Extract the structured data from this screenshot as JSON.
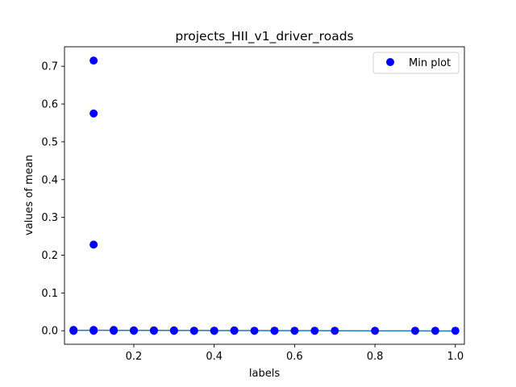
{
  "chart_data": {
    "type": "scatter",
    "title": "projects_HII_v1_driver_roads",
    "xlabel": "labels",
    "ylabel": "values of mean",
    "xlim": [
      0.0275,
      1.0225
    ],
    "ylim": [
      -0.0358,
      0.7516
    ],
    "xticks": [
      0.2,
      0.4,
      0.6,
      0.8,
      1.0
    ],
    "xtick_labels": [
      "0.2",
      "0.4",
      "0.6",
      "0.8",
      "1.0"
    ],
    "yticks": [
      0.0,
      0.1,
      0.2,
      0.3,
      0.4,
      0.5,
      0.6,
      0.7
    ],
    "ytick_labels": [
      "0.0",
      "0.1",
      "0.2",
      "0.3",
      "0.4",
      "0.5",
      "0.6",
      "0.7"
    ],
    "grid": false,
    "legend": {
      "position": "top-right",
      "entries": [
        "Min plot"
      ]
    },
    "colors": {
      "scatter": "#0000ff",
      "line": "#1f77b4"
    },
    "series": [
      {
        "name": "Min plot",
        "kind": "scatter",
        "x": [
          0.05,
          0.05,
          0.05,
          0.1,
          0.1,
          0.1,
          0.1,
          0.1,
          0.15,
          0.15,
          0.2,
          0.2,
          0.25,
          0.25,
          0.3,
          0.3,
          0.35,
          0.35,
          0.4,
          0.4,
          0.45,
          0.45,
          0.5,
          0.55,
          0.55,
          0.6,
          0.65,
          0.7,
          0.8,
          0.9,
          0.95,
          1.0
        ],
        "y": [
          0.0,
          0.0,
          0.002,
          0.715,
          0.575,
          0.228,
          0.002,
          0.0,
          0.002,
          0.0,
          0.001,
          0.0,
          0.001,
          0.0,
          0.001,
          0.0,
          0.0,
          0.0,
          0.0,
          0.0,
          0.001,
          0.0,
          0.0,
          0.0,
          0.0,
          0.0,
          0.0,
          0.0,
          0.0,
          0.0,
          0.0,
          0.0
        ]
      },
      {
        "kind": "line",
        "x": [
          0.05,
          0.1,
          0.15,
          0.2,
          0.25,
          0.3,
          0.35,
          0.4,
          0.45,
          0.5,
          0.55,
          0.6,
          0.65,
          0.7,
          0.8,
          0.9,
          0.95,
          1.0
        ],
        "y": [
          0.001,
          0.0012,
          0.0011,
          0.001,
          0.0009,
          0.0008,
          0.0007,
          0.0006,
          0.0005,
          0.0004,
          0.0003,
          0.0002,
          0.0001,
          0.0,
          -0.0002,
          -0.0004,
          -0.0005,
          -0.0006
        ]
      }
    ]
  }
}
